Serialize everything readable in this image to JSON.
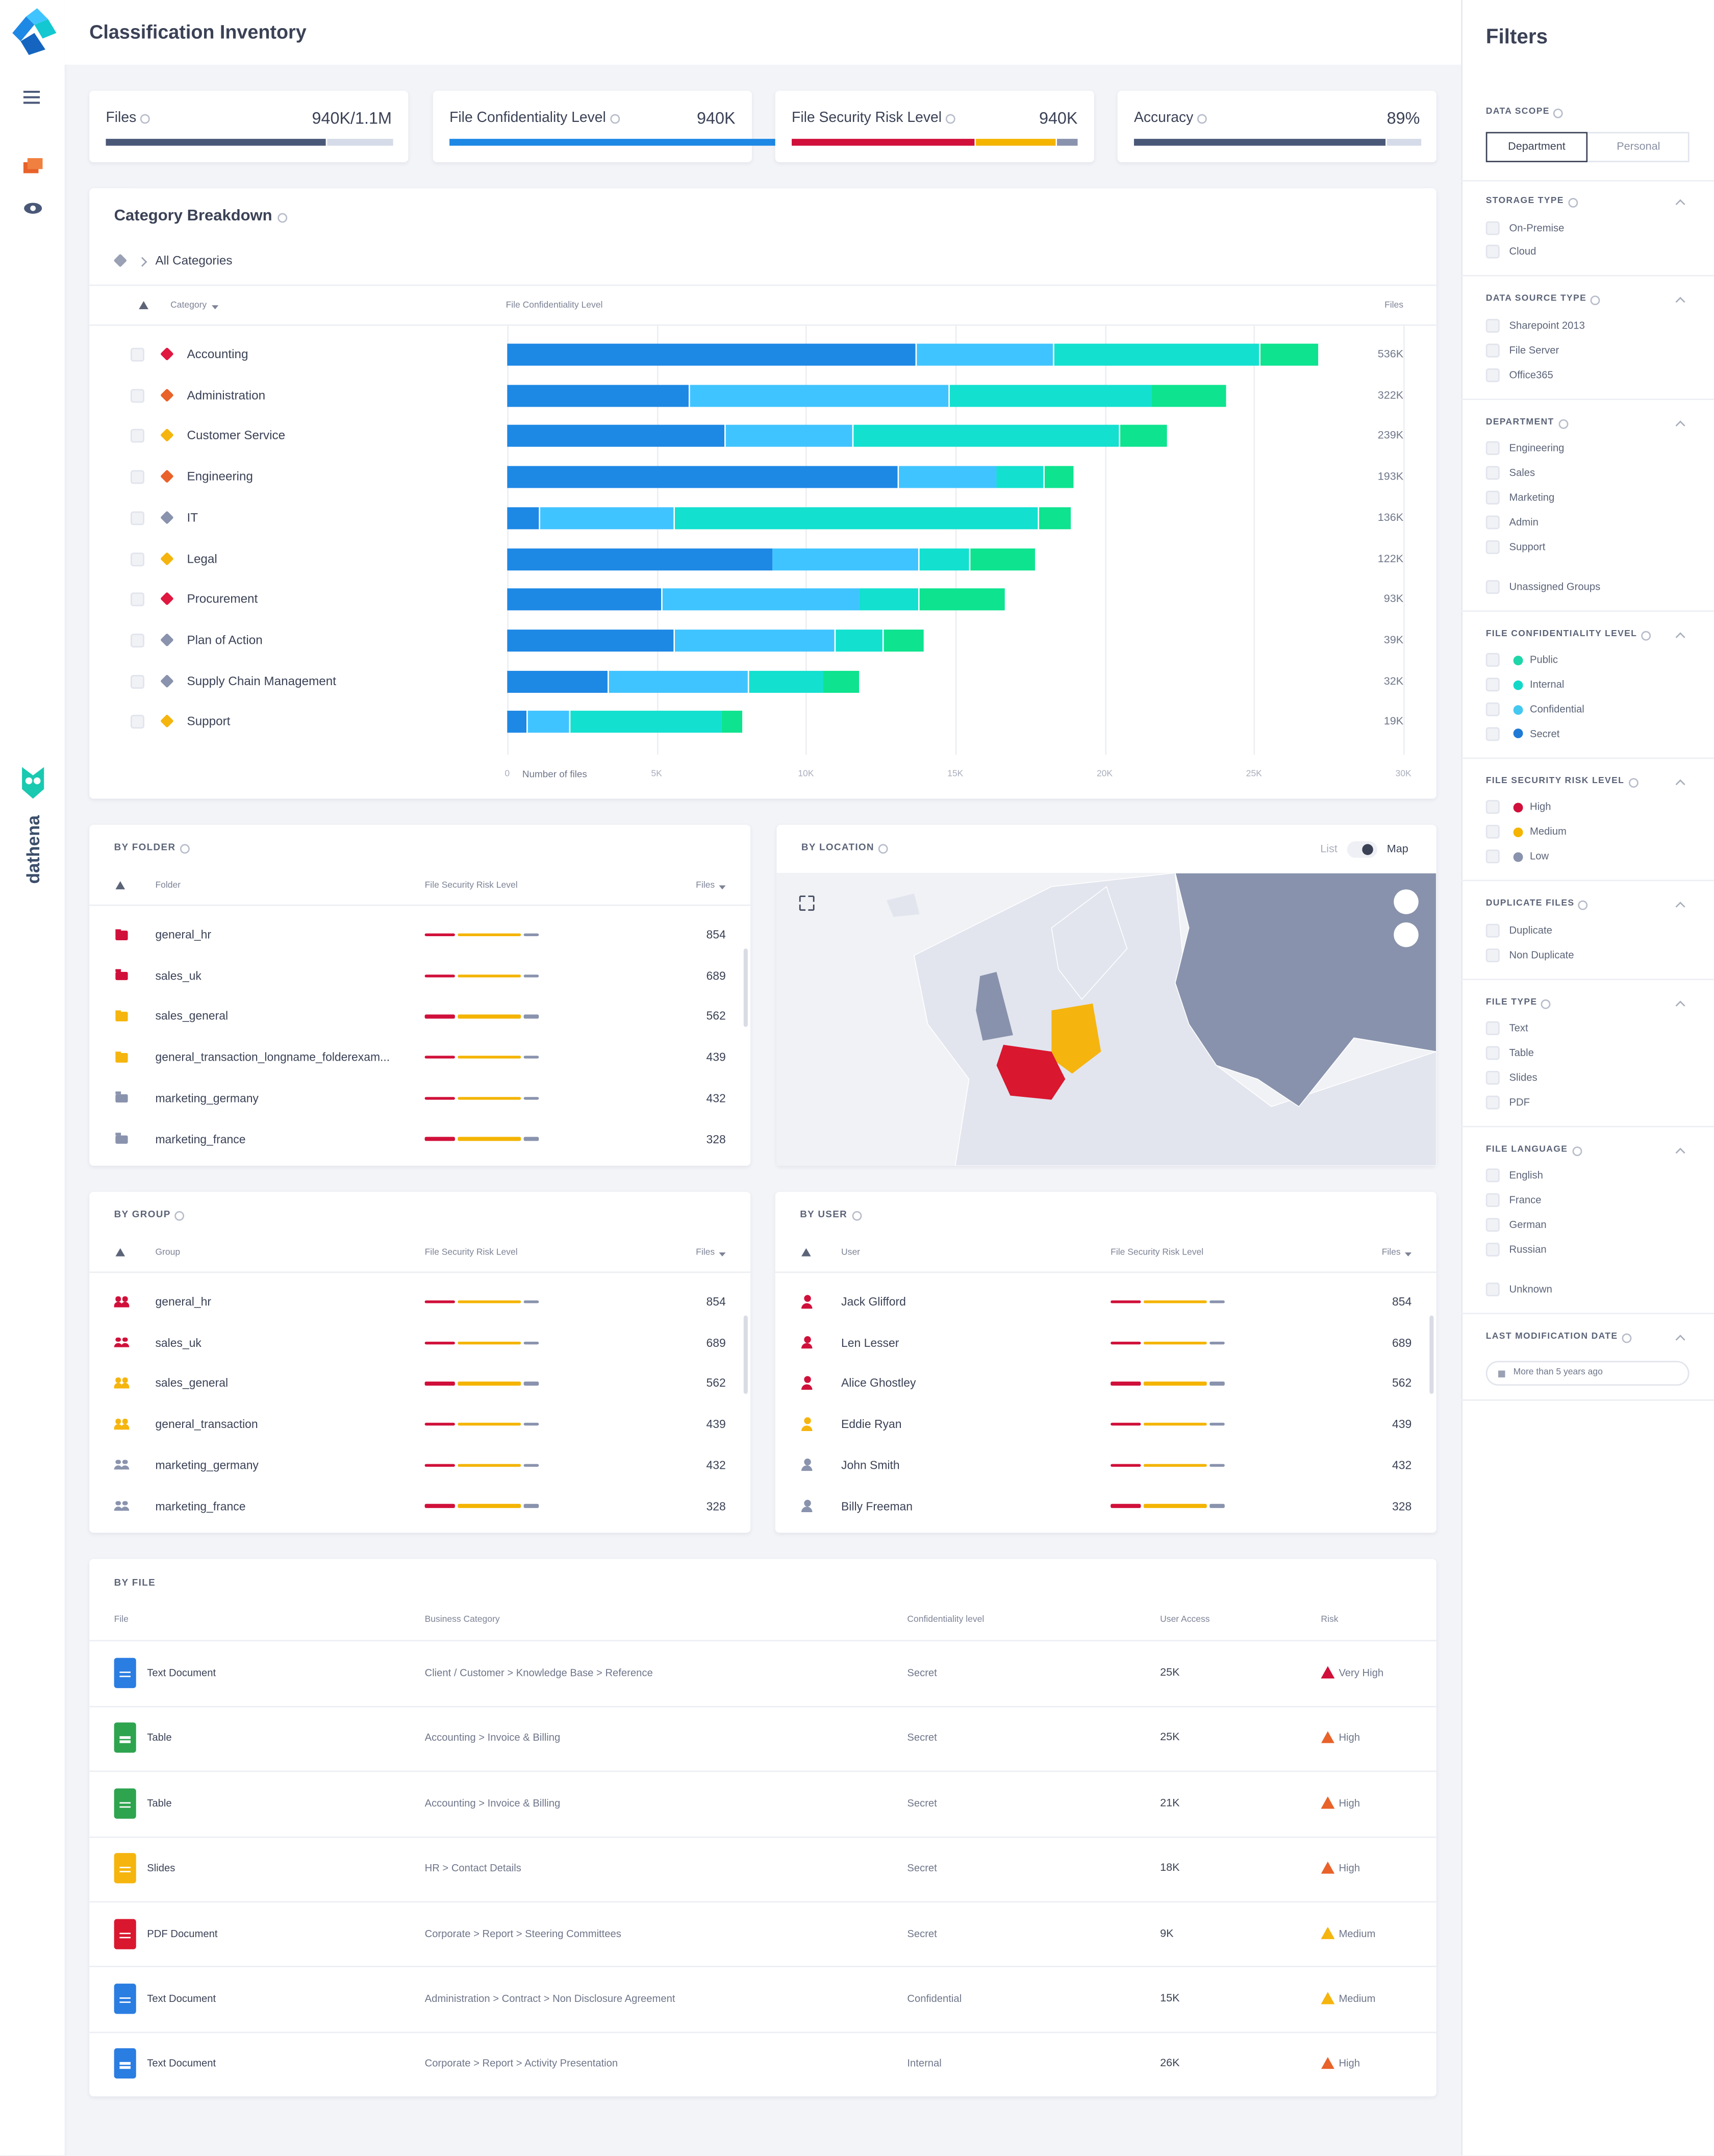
{
  "sidebar": {
    "brand": "dathena"
  },
  "header": {
    "title": "Classification Inventory"
  },
  "kpis": [
    {
      "label": "Files",
      "value": "940K/1.1M"
    },
    {
      "label": "File Confidentiality Level",
      "value": "940K"
    },
    {
      "label": "File Security Risk Level",
      "value": "940K"
    },
    {
      "label": "Accuracy",
      "value": "89%"
    }
  ],
  "category_breakdown": {
    "title": "Category Breakdown",
    "breadcrumb": "All Categories",
    "columns": [
      "Category",
      "File Confidentiality Level",
      "Files"
    ],
    "chart": {
      "type": "bar",
      "orientation": "horizontal",
      "stacked": true,
      "categories": [
        "Accounting",
        "Administration",
        "Customer Service",
        "Engineering",
        "IT",
        "Legal",
        "Procurement",
        "Plan of Action",
        "Supply Chain Management",
        "Support"
      ],
      "tag_colors": [
        "#e0173f",
        "#e8622a",
        "#f5b50e",
        "#e8622a",
        "#8a93ad",
        "#f5b50e",
        "#e0173f",
        "#8a93ad",
        "#8a93ad",
        "#f5b50e"
      ],
      "series": [
        {
          "color": "#1e88e5",
          "values": [
            13700,
            6100,
            7300,
            13100,
            1100,
            8900,
            5200,
            5600,
            3400,
            700
          ]
        },
        {
          "color": "#40c4ff",
          "values": [
            4600,
            8700,
            4300,
            3300,
            4500,
            4900,
            6600,
            5400,
            4700,
            1400
          ]
        },
        {
          "color": "#13e0cf",
          "values": [
            6900,
            6800,
            8900,
            1600,
            12200,
            1700,
            2000,
            1600,
            2500,
            5100
          ]
        },
        {
          "color": "#0ee38f",
          "values": [
            2000,
            2500,
            1600,
            1000,
            1100,
            2200,
            2900,
            1400,
            1200,
            700
          ]
        }
      ],
      "files": [
        "536K",
        "322K",
        "239K",
        "193K",
        "136K",
        "122K",
        "93K",
        "39K",
        "32K",
        "19K"
      ],
      "xlim": [
        0,
        30000
      ],
      "xticks": [
        0,
        {
          "value": 5000,
          "label": "5K"
        },
        {
          "value": 10000,
          "label": "10K"
        },
        {
          "value": 15000,
          "label": "15K"
        },
        {
          "value": 20000,
          "label": "20K"
        },
        {
          "value": 25000,
          "label": "25K"
        },
        {
          "value": 30000,
          "label": "30K"
        }
      ],
      "xlabel": "Number of files",
      "grid": true
    }
  },
  "by_folder": {
    "title": "BY FOLDER",
    "columns": [
      "Folder",
      "File Security Risk Level",
      "Files"
    ],
    "rows": [
      {
        "name": "general_hr",
        "files": 854,
        "icon_color": "#d0103a"
      },
      {
        "name": "sales_uk",
        "files": 689,
        "icon_color": "#d0103a"
      },
      {
        "name": "sales_general",
        "files": 562,
        "icon_color": "#f5b50e"
      },
      {
        "name": "general_transaction_longname_folderexam...",
        "files": 439,
        "icon_color": "#f5b50e"
      },
      {
        "name": "marketing_germany",
        "files": 432,
        "icon_color": "#8a93ad"
      },
      {
        "name": "marketing_france",
        "files": 328,
        "icon_color": "#8a93ad"
      }
    ]
  },
  "by_location": {
    "title": "BY LOCATION",
    "toggle": [
      "List",
      "Map"
    ]
  },
  "by_group": {
    "title": "BY GROUP",
    "columns": [
      "Group",
      "File Security Risk Level",
      "Files"
    ],
    "rows": [
      {
        "name": "general_hr",
        "files": 854,
        "icon_color": "#d0103a"
      },
      {
        "name": "sales_uk",
        "files": 689,
        "icon_color": "#d0103a"
      },
      {
        "name": "sales_general",
        "files": 562,
        "icon_color": "#f5b50e"
      },
      {
        "name": "general_transaction",
        "files": 439,
        "icon_color": "#f5b50e"
      },
      {
        "name": "marketing_germany",
        "files": 432,
        "icon_color": "#8a93ad"
      },
      {
        "name": "marketing_france",
        "files": 328,
        "icon_color": "#8a93ad"
      }
    ]
  },
  "by_user": {
    "title": "BY USER",
    "columns": [
      "User",
      "File Security Risk Level",
      "Files"
    ],
    "rows": [
      {
        "name": "Jack Glifford",
        "files": 854,
        "icon_color": "#d0103a"
      },
      {
        "name": "Len Lesser",
        "files": 689,
        "icon_color": "#d0103a"
      },
      {
        "name": "Alice Ghostley",
        "files": 562,
        "icon_color": "#d0103a"
      },
      {
        "name": "Eddie Ryan",
        "files": 439,
        "icon_color": "#f5b50e"
      },
      {
        "name": "John Smith",
        "files": 432,
        "icon_color": "#8a93ad"
      },
      {
        "name": "Billy Freeman",
        "files": 328,
        "icon_color": "#8a93ad"
      }
    ]
  },
  "by_file": {
    "title": "BY FILE",
    "columns": [
      "File",
      "Business Category",
      "Confidentiality level",
      "User Access",
      "Risk"
    ],
    "rows": [
      {
        "file": "Text Document",
        "category": "Client / Customer > Knowledge Base > Reference",
        "level": "Secret",
        "access": "25K",
        "risk": "Very High",
        "icon_color": "#2a7de1",
        "risk_color": "#d0103a"
      },
      {
        "file": "Table",
        "category": "Accounting > Invoice & Billing",
        "level": "Secret",
        "access": "25K",
        "risk": "High",
        "icon_color": "#2ea44f",
        "risk_color": "#e8622a"
      },
      {
        "file": "Table",
        "category": "Accounting  > Invoice & Billing",
        "level": "Secret",
        "access": "21K",
        "risk": "High",
        "icon_color": "#2ea44f",
        "risk_color": "#e8622a"
      },
      {
        "file": "Slides",
        "category": "HR > Contact Details",
        "level": "Secret",
        "access": "18K",
        "risk": "High",
        "icon_color": "#f5b50e",
        "risk_color": "#e8622a"
      },
      {
        "file": "PDF Document",
        "category": "Corporate > Report > Steering Committees",
        "level": "Secret",
        "access": "9K",
        "risk": "Medium",
        "icon_color": "#d9172f",
        "risk_color": "#f5b50e"
      },
      {
        "file": "Text Document",
        "category": "Administration > Contract > Non Disclosure Agreement",
        "level": "Confidential",
        "access": "15K",
        "risk": "Medium",
        "icon_color": "#2a7de1",
        "risk_color": "#f5b50e"
      },
      {
        "file": "Text Document",
        "category": "Corporate > Report > Activity Presentation",
        "level": "Internal",
        "access": "26K",
        "risk": "High",
        "icon_color": "#2a7de1",
        "risk_color": "#e8622a"
      }
    ]
  },
  "filters": {
    "title": "Filters",
    "data_scope": {
      "title": "DATA SCOPE",
      "tabs": [
        "Department",
        "Personal"
      ]
    },
    "sections": [
      {
        "title": "STORAGE TYPE",
        "groups": [
          [
            "On-Premise",
            "Cloud"
          ]
        ]
      },
      {
        "title": "DATA SOURCE TYPE",
        "groups": [
          [
            "Sharepoint 2013",
            "File Server",
            "Office365"
          ]
        ]
      },
      {
        "title": "DEPARTMENT",
        "groups": [
          [
            "Engineering",
            "Sales",
            "Marketing",
            "Admin",
            "Support"
          ],
          [
            "Unassigned Groups"
          ]
        ]
      },
      {
        "title": "FILE CONFIDENTIALITY LEVEL",
        "groups": [
          [
            "Public",
            "Internal",
            "Confidential",
            "Secret"
          ]
        ],
        "dots": [
          "#1ed6a8",
          "#13d8c8",
          "#45c8f0",
          "#1f7ad6"
        ]
      },
      {
        "title": "FILE SECURITY RISK LEVEL",
        "groups": [
          [
            "High",
            "Medium",
            "Low"
          ]
        ],
        "dots": [
          "#d0103a",
          "#f4b400",
          "#8a93ad"
        ]
      },
      {
        "title": "DUPLICATE FILES",
        "groups": [
          [
            "Duplicate",
            "Non Duplicate"
          ]
        ]
      },
      {
        "title": "FILE TYPE",
        "groups": [
          [
            "Text",
            "Table",
            "Slides",
            "PDF"
          ]
        ]
      },
      {
        "title": "FILE LANGUAGE",
        "groups": [
          [
            "English",
            "France",
            "German",
            "Russian"
          ],
          [
            "Unknown"
          ]
        ]
      },
      {
        "title": "LAST MODIFICATION DATE",
        "input": "More than 5 years ago"
      }
    ]
  }
}
